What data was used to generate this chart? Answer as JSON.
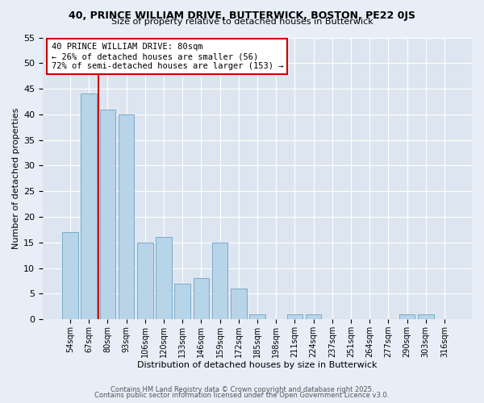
{
  "title_line1": "40, PRINCE WILLIAM DRIVE, BUTTERWICK, BOSTON, PE22 0JS",
  "title_line2": "Size of property relative to detached houses in Butterwick",
  "xlabel": "Distribution of detached houses by size in Butterwick",
  "ylabel": "Number of detached properties",
  "bar_labels": [
    "54sqm",
    "67sqm",
    "80sqm",
    "93sqm",
    "106sqm",
    "120sqm",
    "133sqm",
    "146sqm",
    "159sqm",
    "172sqm",
    "185sqm",
    "198sqm",
    "211sqm",
    "224sqm",
    "237sqm",
    "251sqm",
    "264sqm",
    "277sqm",
    "290sqm",
    "303sqm",
    "316sqm"
  ],
  "bar_values": [
    17,
    44,
    41,
    40,
    15,
    16,
    7,
    8,
    15,
    6,
    1,
    0,
    1,
    1,
    0,
    0,
    0,
    0,
    1,
    1,
    0
  ],
  "bar_color": "#b8d4e8",
  "bar_edge_color": "#7aaac8",
  "vline_color": "#cc0000",
  "annotation_title": "40 PRINCE WILLIAM DRIVE: 80sqm",
  "annotation_line1": "← 26% of detached houses are smaller (56)",
  "annotation_line2": "72% of semi-detached houses are larger (153) →",
  "ylim": [
    0,
    55
  ],
  "yticks": [
    0,
    5,
    10,
    15,
    20,
    25,
    30,
    35,
    40,
    45,
    50,
    55
  ],
  "bg_color": "#e8eef8",
  "plot_bg_color": "#dde6f0",
  "footer_line1": "Contains HM Land Registry data © Crown copyright and database right 2025.",
  "footer_line2": "Contains public sector information licensed under the Open Government Licence v3.0."
}
